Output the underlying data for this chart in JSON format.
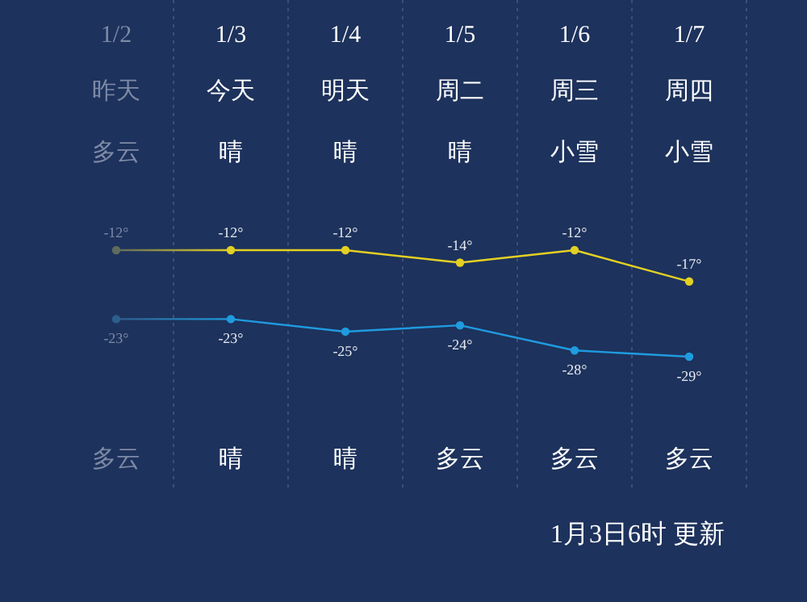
{
  "chart_data": {
    "type": "line",
    "categories": [
      "1/2",
      "1/3",
      "1/4",
      "1/5",
      "1/6",
      "1/7"
    ],
    "series": [
      {
        "color": "#e3d023",
        "colors": [
          "#5f6b5c",
          "#e3d023",
          "#e3d023",
          "#e3d023",
          "#e3d023",
          "#e3d023"
        ],
        "values": [
          -12,
          -12,
          -12,
          -14,
          -12,
          -17
        ],
        "value_labels": [
          "-12°",
          "-12°",
          "-12°",
          "-14°",
          "-12°",
          "-17°"
        ]
      },
      {
        "color": "#1f9be0",
        "colors": [
          "#2d5e8c",
          "#1f9be0",
          "#1f9be0",
          "#1f9be0",
          "#1f9be0",
          "#1f9be0"
        ],
        "values": [
          -23,
          -23,
          -25,
          -24,
          -28,
          -29
        ],
        "value_labels": [
          "-23°",
          "-23°",
          "-25°",
          "-24°",
          "-28°",
          "-29°"
        ]
      }
    ],
    "marker": "circle",
    "grid": "x",
    "annotations": [
      "昨天",
      "今天",
      "明天",
      "周二",
      "周三",
      "周四",
      "多云",
      "晴",
      "晴",
      "晴",
      "小雪",
      "小雪",
      "多云",
      "晴",
      "晴",
      "多云",
      "多云",
      "多云",
      "1月3日6时 更新"
    ]
  }
}
